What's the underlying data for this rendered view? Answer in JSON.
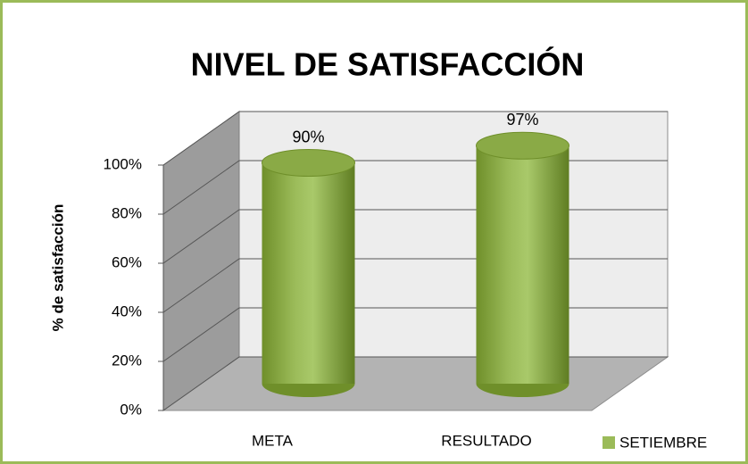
{
  "chart_data": {
    "type": "bar",
    "title": "NIVEL DE SATISFACCIÓN",
    "y_label": "% de satisfacción",
    "categories": [
      "META",
      "RESULTADO"
    ],
    "series": [
      {
        "name": "SETIEMBRE",
        "color": "#9bbb59",
        "values": [
          90,
          97
        ],
        "value_labels": [
          "90%",
          "97%"
        ]
      }
    ],
    "ylim": [
      0,
      100
    ],
    "yticks": [
      {
        "value": 0,
        "label": "0%"
      },
      {
        "value": 20,
        "label": "20%"
      },
      {
        "value": 40,
        "label": "40%"
      },
      {
        "value": 60,
        "label": "60%"
      },
      {
        "value": 80,
        "label": "80%"
      },
      {
        "value": 100,
        "label": "100%"
      }
    ],
    "grid": true,
    "legend": "bottom-right"
  }
}
